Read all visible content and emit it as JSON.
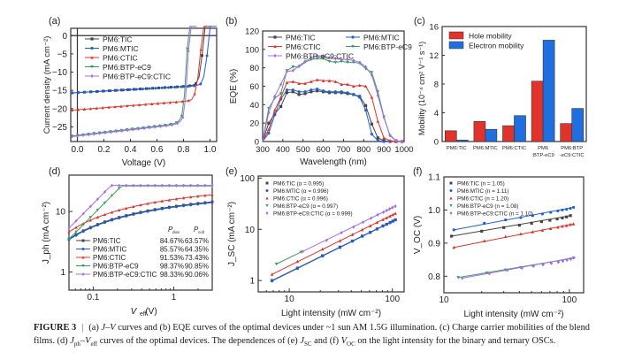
{
  "colors": {
    "TIC": "#444444",
    "MTIC": "#1f5fd6",
    "CTIC": "#e0332b",
    "BTP": "#3a9e5a",
    "BTPCTIC": "#a66ce8",
    "hole": "#e0332b",
    "electron": "#1f6fe0"
  },
  "chart_data": [
    {
      "panel": "(a)",
      "type": "line",
      "xlabel": "Voltage (V)",
      "ylabel": "Current density (mA cm⁻²)",
      "xlim": [
        -0.05,
        1.05
      ],
      "ylim": [
        -29,
        2
      ],
      "xticks": [
        "0.0",
        "0.2",
        "0.4",
        "0.6",
        "0.8",
        "1.0"
      ],
      "yticks": [
        "0",
        "-5",
        "-10",
        "-15",
        "-20",
        "-25"
      ],
      "legend": "top-left",
      "series": [
        {
          "name": "PM6:TIC",
          "key": "TIC",
          "marker": "square",
          "jsc": -15.6,
          "voc": 0.97,
          "knee": 0.9
        },
        {
          "name": "PM6:MTIC",
          "key": "MTIC",
          "marker": "circle",
          "jsc": -15.6,
          "voc": 1.01,
          "knee": 0.93
        },
        {
          "name": "PM6:CTIC",
          "key": "CTIC",
          "marker": "triangle-up",
          "jsc": -20.3,
          "voc": 0.96,
          "knee": 0.86
        },
        {
          "name": "PM6:BTP-eC9",
          "key": "BTP",
          "marker": "triangle-down",
          "jsc": -27.3,
          "voc": 0.85,
          "knee": 0.78
        },
        {
          "name": "PM6:BTP-eC9:CTIC",
          "key": "BTPCTIC",
          "marker": "diamond",
          "jsc": -27.5,
          "voc": 0.86,
          "knee": 0.79
        }
      ]
    },
    {
      "panel": "(b)",
      "type": "line",
      "xlabel": "Wavelength (nm)",
      "ylabel": "EQE (%)",
      "xlim": [
        300,
        1000
      ],
      "ylim": [
        0,
        120
      ],
      "xticks": [
        "300",
        "400",
        "500",
        "600",
        "700",
        "800",
        "900",
        "1000"
      ],
      "yticks": [
        "0",
        "20",
        "40",
        "60",
        "80",
        "100",
        "120"
      ],
      "legend": "top",
      "x": [
        300,
        330,
        360,
        390,
        420,
        450,
        480,
        510,
        540,
        570,
        600,
        630,
        660,
        690,
        720,
        750,
        780,
        810,
        840,
        870,
        900,
        930,
        960,
        990
      ],
      "series": [
        {
          "name": "PM6:TIC",
          "key": "TIC",
          "marker": "square",
          "values": [
            0,
            20,
            30,
            38,
            53,
            54,
            51,
            52,
            54,
            55,
            54,
            53,
            53,
            53,
            52,
            51,
            49,
            39,
            19,
            4,
            1,
            0,
            0,
            0
          ]
        },
        {
          "name": "PM6:MTIC",
          "key": "MTIC",
          "marker": "circle",
          "values": [
            0,
            9,
            29,
            46,
            56,
            56,
            54,
            54,
            56,
            57,
            55,
            54,
            54,
            54,
            53,
            51,
            48,
            34,
            8,
            1,
            0,
            0,
            0,
            0
          ]
        },
        {
          "name": "PM6:CTIC",
          "key": "CTIC",
          "marker": "triangle-up",
          "values": [
            0,
            13,
            34,
            48,
            64,
            65,
            63,
            63,
            65,
            67,
            66,
            66,
            65,
            62,
            62,
            60,
            61,
            60,
            48,
            22,
            4,
            1,
            0,
            0
          ]
        },
        {
          "name": "PM6:BTP-eC9",
          "key": "BTP",
          "marker": "triangle-down",
          "values": [
            0,
            36,
            47,
            52,
            77,
            81,
            81,
            86,
            89,
            90,
            90,
            87,
            86,
            87,
            86,
            86,
            85,
            79,
            75,
            54,
            27,
            6,
            1,
            0
          ]
        },
        {
          "name": "PM6:BTP-eC9:CTIC",
          "key": "BTPCTIC",
          "marker": "diamond",
          "values": [
            0,
            31,
            49,
            62,
            76,
            77,
            82,
            87,
            91,
            93,
            93,
            91,
            90,
            89,
            89,
            88,
            86,
            81,
            72,
            50,
            26,
            7,
            1,
            0
          ]
        }
      ]
    },
    {
      "panel": "(c)",
      "type": "bar",
      "ylabel": "Mobility (10⁻⁴ cm² V⁻¹ s⁻¹)",
      "ylim": [
        0,
        16
      ],
      "yticks": [
        "0",
        "4",
        "8",
        "12",
        "16"
      ],
      "legend": "top-left",
      "categories": [
        "PM6:TIC",
        "PM6:MTIC",
        "PM6:CTIC",
        "PM6\n:BTP-eC9",
        "PM6:BTP\n-eC9:CTIC"
      ],
      "series": [
        {
          "name": "Hole mobility",
          "key": "hole",
          "values": [
            1.5,
            2.8,
            2.2,
            8.4,
            2.5
          ]
        },
        {
          "name": "Electron mobility",
          "key": "electron",
          "values": [
            0.2,
            1.7,
            3.6,
            14.1,
            4.6
          ]
        }
      ]
    },
    {
      "panel": "(d)",
      "type": "line",
      "xscale": "log",
      "yscale": "log",
      "xlabel": "V_eff (V)",
      "ylabel": "J_ph (mA cm⁻²)",
      "xlim": [
        0.05,
        3
      ],
      "ylim": [
        0.5,
        40
      ],
      "xticks": [
        "0.1",
        "1"
      ],
      "yticks": [
        "1",
        "10"
      ],
      "legend": "bottom",
      "table_headers": [
        "P_diss",
        "P_coll"
      ],
      "series": [
        {
          "name": "PM6:TIC",
          "key": "TIC",
          "marker": "square",
          "pdiss": "84.67%",
          "pcoll": "63.57%",
          "jsat": 19,
          "start": 3.5
        },
        {
          "name": "PM6:MTIC",
          "key": "MTIC",
          "marker": "circle",
          "pdiss": "85.57%",
          "pcoll": "64.35%",
          "jsat": 17.5,
          "start": 3.4
        },
        {
          "name": "PM6:CTIC",
          "key": "CTIC",
          "marker": "triangle-up",
          "pdiss": "91.53%",
          "pcoll": "73.43%",
          "jsat": 21.5,
          "start": 4.6
        },
        {
          "name": "PM6:BTP-eC9",
          "key": "BTP",
          "marker": "triangle-down",
          "pdiss": "98.37%",
          "pcoll": "90.85%",
          "jsat": 26.5,
          "start": 3.5
        },
        {
          "name": "PM6:BTP-eC9:CTIC",
          "key": "BTPCTIC",
          "marker": "diamond",
          "pdiss": "98.33%",
          "pcoll": "90.06%",
          "jsat": 27,
          "start": 5.3
        }
      ]
    },
    {
      "panel": "(e)",
      "type": "scatter",
      "xscale": "log",
      "yscale": "log",
      "xlabel": "Light intensity (mW cm⁻²)",
      "ylabel": "J_SC (mA cm⁻²)",
      "xlim": [
        5,
        130
      ],
      "ylim": [
        0.6,
        110
      ],
      "xticks": [
        "10",
        "100"
      ],
      "yticks": [
        "1",
        "10",
        "100"
      ],
      "legend": "top-left",
      "x": [
        6.8,
        12,
        21,
        31,
        41,
        51,
        61,
        71,
        81,
        88,
        95,
        101,
        107
      ],
      "series": [
        {
          "name": "PM6:TIC",
          "key": "TIC",
          "marker": "square",
          "alpha": "0.995",
          "values": [
            1.0,
            1.75,
            3.05,
            4.5,
            5.9,
            7.4,
            8.7,
            10.2,
            11.7,
            12.6,
            13.6,
            14.5,
            15.4
          ]
        },
        {
          "name": "PM6:MTIC",
          "key": "MTIC",
          "marker": "circle",
          "alpha": "0.996",
          "values": [
            0.98,
            1.72,
            3.0,
            4.4,
            5.85,
            7.3,
            8.7,
            10.1,
            11.5,
            12.5,
            13.4,
            14.3,
            15.2
          ]
        },
        {
          "name": "PM6:CTIC",
          "key": "CTIC",
          "marker": "triangle-up",
          "alpha": "0.996",
          "values": [
            1.32,
            2.35,
            4.1,
            6.0,
            7.9,
            9.8,
            11.7,
            13.6,
            15.5,
            16.8,
            18.1,
            19.3,
            20.5
          ]
        },
        {
          "name": "PM6:BTP-eC9",
          "key": "BTP",
          "marker": "triangle-down",
          "alpha": "0.997",
          "x": [
            7.5,
            13
          ],
          "values": [
            2.1,
            3.6
          ]
        },
        {
          "name": "PM6:BTP-eC9:CTIC",
          "key": "BTPCTIC",
          "marker": "diamond",
          "alpha": "0.999",
          "x": [
            13.5,
            23,
            32,
            42,
            52,
            62,
            72,
            82,
            88,
            94,
            100,
            107
          ],
          "values": [
            3.7,
            6.1,
            8.6,
            11.1,
            13.8,
            16.5,
            19.2,
            21.6,
            23.3,
            25.0,
            26.6,
            28.3
          ]
        }
      ]
    },
    {
      "panel": "(f)",
      "type": "scatter",
      "xscale": "log",
      "xlabel": "Light intensity (mW cm⁻²)",
      "ylabel": "V_OC (V)",
      "xlim": [
        10,
        130
      ],
      "ylim": [
        0.75,
        1.1
      ],
      "xticks": [
        "10",
        "100"
      ],
      "yticks": [
        "0.8",
        "0.9",
        "1.0",
        "1.1"
      ],
      "legend": "top-left",
      "series": [
        {
          "name": "PM6:TIC",
          "key": "TIC",
          "marker": "square",
          "n": "1.05",
          "x": [
            11.5,
            20,
            30,
            40,
            50,
            60,
            70,
            80,
            88,
            95,
            102
          ],
          "values": [
            0.921,
            0.936,
            0.947,
            0.954,
            0.96,
            0.965,
            0.969,
            0.973,
            0.976,
            0.979,
            0.983
          ]
        },
        {
          "name": "PM6:MTIC",
          "key": "MTIC",
          "marker": "circle",
          "n": "1.11",
          "x": [
            12,
            21,
            31,
            41,
            51,
            61,
            71,
            81,
            88,
            95,
            102,
            108
          ],
          "values": [
            0.94,
            0.96,
            0.97,
            0.977,
            0.983,
            0.988,
            0.993,
            0.997,
            1.0,
            1.002,
            1.005,
            1.008
          ]
        },
        {
          "name": "PM6:CTIC",
          "key": "CTIC",
          "marker": "triangle-up",
          "n": "1.20",
          "x": [
            12,
            21,
            31,
            41,
            51,
            61,
            71,
            81,
            88,
            95,
            102,
            108
          ],
          "values": [
            0.887,
            0.907,
            0.92,
            0.928,
            0.934,
            0.939,
            0.944,
            0.948,
            0.951,
            0.953,
            0.956,
            0.958
          ]
        },
        {
          "name": "PM6:BTP-eC9",
          "key": "BTP",
          "marker": "triangle-down",
          "n": "1.08",
          "x": [
            13,
            22,
            31,
            41,
            51,
            61,
            71,
            81,
            88,
            95,
            102,
            108
          ],
          "values": [
            0.796,
            0.81,
            0.819,
            0.826,
            0.831,
            0.836,
            0.84,
            0.843,
            0.846,
            0.849,
            0.852,
            0.855
          ]
        },
        {
          "name": "PM6:BTP-eC9:CTIC",
          "key": "BTPCTIC",
          "marker": "diamond",
          "n": "1.10",
          "x": [
            14,
            23,
            32,
            42,
            52,
            62,
            72,
            82,
            89,
            96,
            103,
            109
          ],
          "values": [
            0.794,
            0.808,
            0.818,
            0.825,
            0.831,
            0.835,
            0.839,
            0.843,
            0.846,
            0.849,
            0.852,
            0.856
          ]
        }
      ]
    }
  ],
  "caption": {
    "label": "FIGURE 3",
    "sep": "|",
    "parts": [
      {
        "t": "(a) ",
        "i": false
      },
      {
        "t": "J",
        "i": true
      },
      {
        "t": "–",
        "i": false
      },
      {
        "t": "V",
        "i": true
      },
      {
        "t": " curves and (b) EQE curves of the optimal devices under ~1 sun AM 1.5G illumination. (c) Charge carrier mobilities of the blend films. (d) ",
        "i": false
      },
      {
        "t": "J",
        "i": true
      },
      {
        "t": "ph",
        "i": false,
        "sub": true
      },
      {
        "t": "–",
        "i": false
      },
      {
        "t": "V",
        "i": true
      },
      {
        "t": "eff",
        "i": false,
        "sub": true
      },
      {
        "t": " curves of the optimal devices. The dependences of (e) ",
        "i": false
      },
      {
        "t": "J",
        "i": true
      },
      {
        "t": "SC",
        "i": false,
        "sub": true
      },
      {
        "t": " and (f) ",
        "i": false
      },
      {
        "t": "V",
        "i": true
      },
      {
        "t": "OC",
        "i": false,
        "sub": true
      },
      {
        "t": " on the light intensity for the binary and ternary OSCs.",
        "i": false
      }
    ]
  }
}
